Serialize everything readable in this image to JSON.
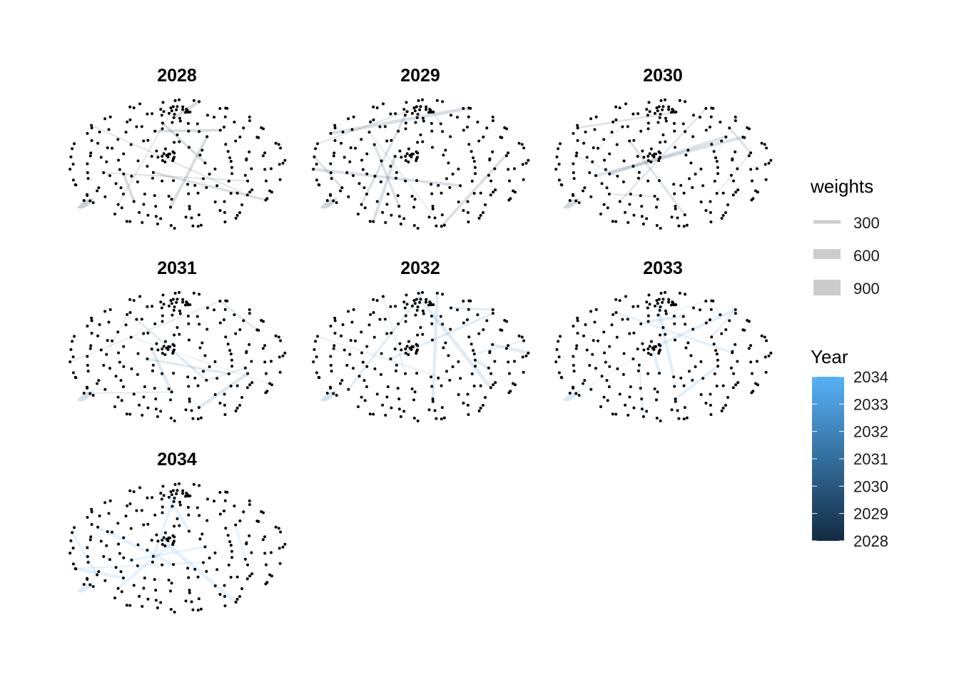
{
  "chart_data": {
    "type": "network",
    "panels": [
      {
        "title": "2028",
        "year": 2028
      },
      {
        "title": "2029",
        "year": 2029
      },
      {
        "title": "2030",
        "year": 2030
      },
      {
        "title": "2031",
        "year": 2031
      },
      {
        "title": "2032",
        "year": 2032
      },
      {
        "title": "2033",
        "year": 2033
      },
      {
        "title": "2034",
        "year": 2034
      }
    ],
    "legends": {
      "weights": {
        "title": "weights",
        "entries": [
          {
            "label": "300",
            "value": 300
          },
          {
            "label": "600",
            "value": 600
          },
          {
            "label": "900",
            "value": 900
          }
        ]
      },
      "year": {
        "title": "Year",
        "ticks": [
          {
            "label": "2034",
            "value": 2034
          },
          {
            "label": "2033",
            "value": 2033
          },
          {
            "label": "2032",
            "value": 2032
          },
          {
            "label": "2031",
            "value": 2031
          },
          {
            "label": "2030",
            "value": 2030
          },
          {
            "label": "2029",
            "value": 2029
          },
          {
            "label": "2028",
            "value": 2028
          }
        ],
        "range": [
          2028,
          2034
        ],
        "low_color": "#132B43",
        "high_color": "#56B1F7"
      }
    },
    "node_color": "#000000",
    "edge_color_by": "Year",
    "edge_width_by": "weights"
  }
}
